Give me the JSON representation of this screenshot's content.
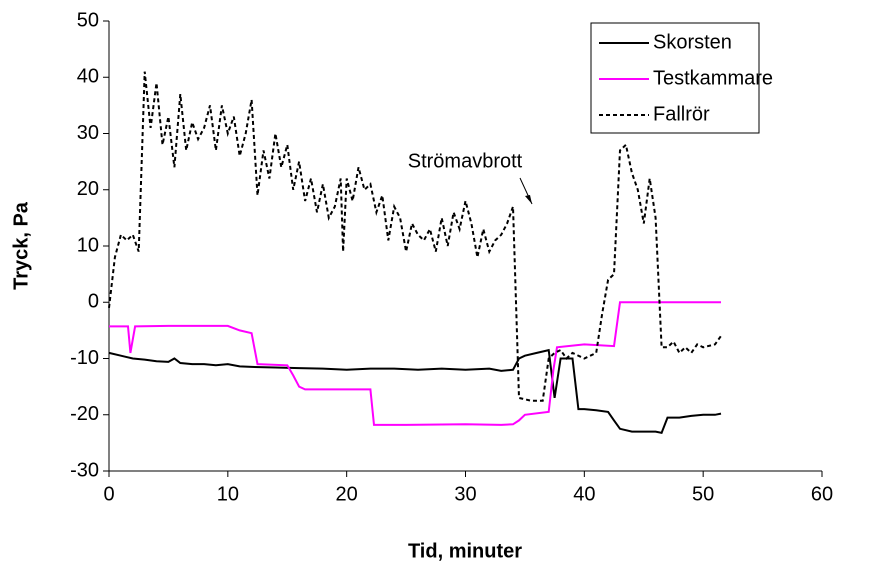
{
  "chart_data": {
    "type": "line",
    "xlabel": "Tid, minuter",
    "ylabel": "Tryck, Pa",
    "annotation": "Strömavbrott",
    "xlim": [
      0,
      60
    ],
    "xticks": [
      0,
      10,
      20,
      30,
      40,
      50,
      60
    ],
    "ylim": [
      -30,
      50
    ],
    "yticks": [
      -30,
      -20,
      -10,
      0,
      10,
      20,
      30,
      40,
      50
    ],
    "grid": false,
    "legend": "top-right",
    "series": [
      {
        "name": "Skorsten",
        "color": "#000000",
        "dash": "solid",
        "x": [
          0,
          1,
          2,
          3,
          4,
          5,
          5.5,
          6,
          7,
          8,
          9,
          10,
          11,
          12,
          14,
          16,
          18,
          20,
          22,
          24,
          26,
          28,
          30,
          32,
          33,
          34,
          34.5,
          35,
          36,
          37,
          37.5,
          38,
          38.5,
          39,
          39.5,
          40,
          41,
          42,
          42.5,
          43,
          44,
          45,
          46,
          46.5,
          47,
          48,
          49,
          50,
          51,
          51.5
        ],
        "values": [
          -9,
          -9.5,
          -10,
          -10.2,
          -10.5,
          -10.6,
          -10,
          -10.8,
          -11,
          -11,
          -11.2,
          -11,
          -11.4,
          -11.5,
          -11.6,
          -11.7,
          -11.8,
          -12,
          -11.8,
          -11.8,
          -12,
          -11.8,
          -12,
          -11.8,
          -12.2,
          -12,
          -10,
          -9.5,
          -9,
          -8.5,
          -17,
          -10,
          -10,
          -10,
          -19,
          -19,
          -19.2,
          -19.5,
          -21,
          -22.5,
          -23,
          -23,
          -23,
          -23.2,
          -20.5,
          -20.5,
          -20.2,
          -20,
          -20,
          -19.8
        ]
      },
      {
        "name": "Testkammare",
        "color": "#ff00ff",
        "dash": "solid",
        "x": [
          0,
          1.6,
          1.8,
          2.2,
          5,
          10,
          11,
          12,
          12.5,
          15,
          15.5,
          16,
          16.5,
          20,
          22,
          22.3,
          25,
          30,
          33,
          34,
          34.5,
          35,
          37,
          37.4,
          37.7,
          40,
          42.5,
          43,
          46,
          51.5
        ],
        "values": [
          -4.3,
          -4.3,
          -9,
          -4.3,
          -4.2,
          -4.2,
          -5,
          -5.5,
          -11,
          -11.2,
          -13,
          -15,
          -15.5,
          -15.5,
          -15.5,
          -21.8,
          -21.8,
          -21.7,
          -21.8,
          -21.7,
          -21,
          -20,
          -19.5,
          -12,
          -8,
          -7.5,
          -7.8,
          0,
          0,
          0
        ]
      },
      {
        "name": "Fallrör",
        "color": "#000000",
        "dash": "dashed",
        "x": [
          0,
          0.5,
          1,
          1.5,
          2,
          2.5,
          3,
          3.5,
          4,
          4.5,
          5,
          5.5,
          6,
          6.5,
          7,
          7.5,
          8,
          8.5,
          9,
          9.5,
          10,
          10.5,
          11,
          11.5,
          12,
          12.5,
          13,
          13.5,
          14,
          14.5,
          15,
          15.5,
          16,
          16.5,
          17,
          17.5,
          18,
          18.5,
          19,
          19.5,
          19.7,
          20,
          20.5,
          21,
          21.5,
          22,
          22.5,
          23,
          23.5,
          24,
          24.5,
          25,
          25.5,
          26,
          26.5,
          27,
          27.5,
          28,
          28.5,
          29,
          29.5,
          30,
          30.5,
          31,
          31.5,
          32,
          32.5,
          33,
          33.5,
          34,
          34.5,
          35.5,
          36.5,
          37,
          37.5,
          38,
          38.5,
          39,
          40,
          41,
          41.5,
          42,
          42.5,
          43,
          43.5,
          44,
          44.5,
          45,
          45.5,
          46,
          46.5,
          47,
          47.5,
          48,
          48.5,
          49,
          49.5,
          50,
          51,
          51.5
        ],
        "values": [
          -1,
          8,
          12,
          11,
          12,
          9,
          41,
          31,
          39,
          28,
          33,
          24,
          37,
          27,
          32,
          29,
          31,
          35,
          27,
          35,
          30,
          33,
          26,
          30,
          36,
          19,
          27,
          22,
          30,
          24,
          28,
          20,
          25,
          18,
          22,
          16,
          21,
          15,
          17,
          22,
          9,
          22,
          18,
          24,
          20,
          21,
          16,
          19,
          11,
          17,
          15,
          9,
          14,
          12,
          11,
          13,
          9,
          15,
          10,
          16,
          13,
          18,
          14,
          8,
          13,
          9,
          11,
          12,
          14,
          17,
          -17,
          -17.5,
          -17.5,
          -10,
          -9,
          -8.5,
          -10,
          -9,
          -10,
          -9,
          -2,
          4,
          5,
          27,
          28,
          23,
          20,
          14,
          22,
          15,
          -8,
          -8,
          -7,
          -9,
          -8,
          -9,
          -7.5,
          -8,
          -7.5,
          -6
        ]
      }
    ]
  }
}
